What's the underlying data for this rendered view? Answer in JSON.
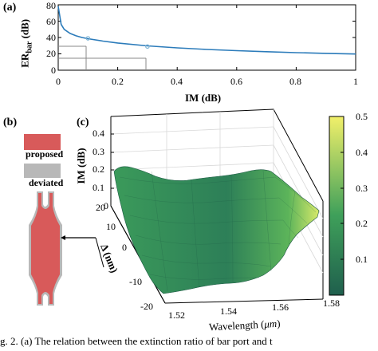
{
  "panel_a": {
    "label": "(a)",
    "ylabel_main": "ER",
    "ylabel_sub": "bar",
    "ylabel_unit": "(dB)",
    "xlabel": "IM (dB)",
    "xticks": [
      "0",
      "0.2",
      "0.4",
      "0.6",
      "0.8",
      "1"
    ],
    "yticks": [
      "0",
      "20",
      "40",
      "60",
      "80"
    ],
    "curve_color": "#2b7bba",
    "marker_color": "#7fb4d6"
  },
  "panel_b": {
    "label": "(b)",
    "legend_proposed": "proposed",
    "legend_deviated": "deviated",
    "proposed_color": "#d85a5a",
    "deviated_color": "#b8b8b8"
  },
  "panel_c": {
    "label": "(c)",
    "zlabel": "IM (dB)",
    "ylabel": "Δ (nm)",
    "xlabel_text": "Wavelength (",
    "xlabel_unit": "μm",
    "xlabel_close": ")",
    "zticks": [
      "0",
      "0.1",
      "0.2",
      "0.3",
      "0.4"
    ],
    "yticks": [
      "20",
      "10",
      "0",
      "-10",
      "-20"
    ],
    "xticks": [
      "1.52",
      "1.54",
      "1.56",
      "1.58"
    ],
    "colorbar_ticks": [
      "0.5",
      "0.4",
      "0.3",
      "0.2",
      "0.1"
    ],
    "colorbar_low": "#1f5f4d",
    "colorbar_mid": "#3fa05a",
    "colorbar_high": "#f2f06a"
  },
  "caption": "g. 2.   (a) The relation between the extinction ratio of bar port and t",
  "chart_data": [
    {
      "type": "line",
      "title": "",
      "xlabel": "IM (dB)",
      "ylabel": "ER_bar (dB)",
      "xlim": [
        0,
        1
      ],
      "ylim": [
        0,
        80
      ],
      "grid": false,
      "series": [
        {
          "x": [
            0.0,
            0.01,
            0.02,
            0.04,
            0.06,
            0.08,
            0.1,
            0.15,
            0.2,
            0.3,
            0.4,
            0.5,
            0.6,
            0.7,
            0.8,
            0.9,
            1.0
          ],
          "y": [
            78,
            56,
            50,
            45,
            42,
            40,
            38.5,
            35.6,
            33.3,
            29.8,
            27.3,
            25.4,
            23.9,
            22.6,
            21.5,
            20.6,
            19.8
          ]
        }
      ],
      "markers": [
        {
          "x": 0.1,
          "y": 39
        },
        {
          "x": 0.3,
          "y": 29
        }
      ]
    },
    {
      "type": "surface",
      "xlabel": "Wavelength (μm)",
      "ylabel": "Δ (nm)",
      "zlabel": "IM (dB)",
      "xlim": [
        1.52,
        1.58
      ],
      "ylim": [
        -20,
        20
      ],
      "zlim": [
        0,
        0.4
      ],
      "colorbar_range": [
        0,
        0.5
      ]
    }
  ]
}
